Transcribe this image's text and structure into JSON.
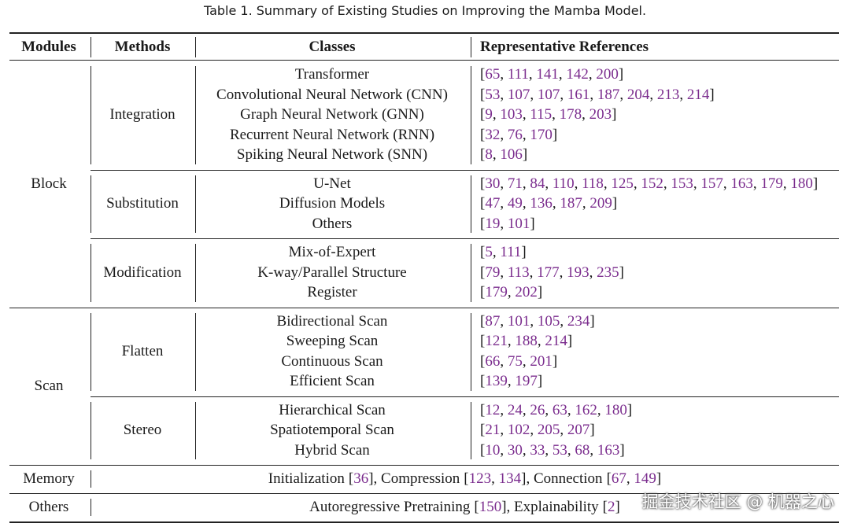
{
  "title": "Table 1.  Summary of Existing Studies on Improving the Mamba Model.",
  "header": [
    "Modules",
    "Methods",
    "Classes",
    "Representative References"
  ],
  "groups": [
    {
      "module": "Block",
      "methods": [
        {
          "method": "Integration",
          "classes": [
            {
              "name": "Transformer",
              "refs": [
                "65",
                "111",
                "141",
                "142",
                "200"
              ]
            },
            {
              "name": "Convolutional Neural Network (CNN)",
              "refs": [
                "53",
                "107",
                "107",
                "161",
                "187",
                "204",
                "213",
                "214"
              ]
            },
            {
              "name": "Graph Neural Network (GNN)",
              "refs": [
                "9",
                "103",
                "115",
                "178",
                "203"
              ]
            },
            {
              "name": "Recurrent Neural Network (RNN)",
              "refs": [
                "32",
                "76",
                "170"
              ]
            },
            {
              "name": "Spiking Neural Network (SNN)",
              "refs": [
                "8",
                "106"
              ]
            }
          ]
        },
        {
          "method": "Substitution",
          "classes": [
            {
              "name": "U-Net",
              "refs": [
                "30",
                "71",
                "84",
                "110",
                "118",
                "125",
                "152",
                "153",
                "157",
                "163",
                "179",
                "180"
              ]
            },
            {
              "name": "Diffusion Models",
              "refs": [
                "47",
                "49",
                "136",
                "187",
                "209"
              ]
            },
            {
              "name": "Others",
              "refs": [
                "19",
                "101"
              ]
            }
          ]
        },
        {
          "method": "Modification",
          "classes": [
            {
              "name": "Mix-of-Expert",
              "refs": [
                "5",
                "111"
              ]
            },
            {
              "name": "K-way/Parallel Structure",
              "refs": [
                "79",
                "113",
                "177",
                "193",
                "235"
              ]
            },
            {
              "name": "Register",
              "refs": [
                "179",
                "202"
              ]
            }
          ]
        }
      ]
    },
    {
      "module": "Scan",
      "methods": [
        {
          "method": "Flatten",
          "classes": [
            {
              "name": "Bidirectional Scan",
              "refs": [
                "87",
                "101",
                "105",
                "234"
              ]
            },
            {
              "name": "Sweeping Scan",
              "refs": [
                "121",
                "188",
                "214"
              ]
            },
            {
              "name": "Continuous Scan",
              "refs": [
                "66",
                "75",
                "201"
              ]
            },
            {
              "name": "Efficient Scan",
              "refs": [
                "139",
                "197"
              ]
            }
          ]
        },
        {
          "method": "Stereo",
          "classes": [
            {
              "name": "Hierarchical Scan",
              "refs": [
                "12",
                "24",
                "26",
                "63",
                "162",
                "180"
              ]
            },
            {
              "name": "Spatiotemporal Scan",
              "refs": [
                "21",
                "102",
                "205",
                "207"
              ]
            },
            {
              "name": "Hybrid Scan",
              "refs": [
                "10",
                "30",
                "33",
                "53",
                "68",
                "163"
              ]
            }
          ]
        }
      ]
    }
  ],
  "rows": [
    {
      "module": "Memory",
      "items": [
        {
          "label": "Initialization",
          "refs": [
            "36"
          ]
        },
        {
          "label": "Compression",
          "refs": [
            "123",
            "134"
          ]
        },
        {
          "label": "Connection",
          "refs": [
            "67",
            "149"
          ]
        }
      ]
    },
    {
      "module": "Others",
      "items": [
        {
          "label": "Autoregressive Pretraining",
          "refs": [
            "150"
          ]
        },
        {
          "label": "Explainability",
          "refs": [
            "2"
          ]
        }
      ]
    }
  ],
  "watermark": "掘金技术社区 @ 机器之心"
}
